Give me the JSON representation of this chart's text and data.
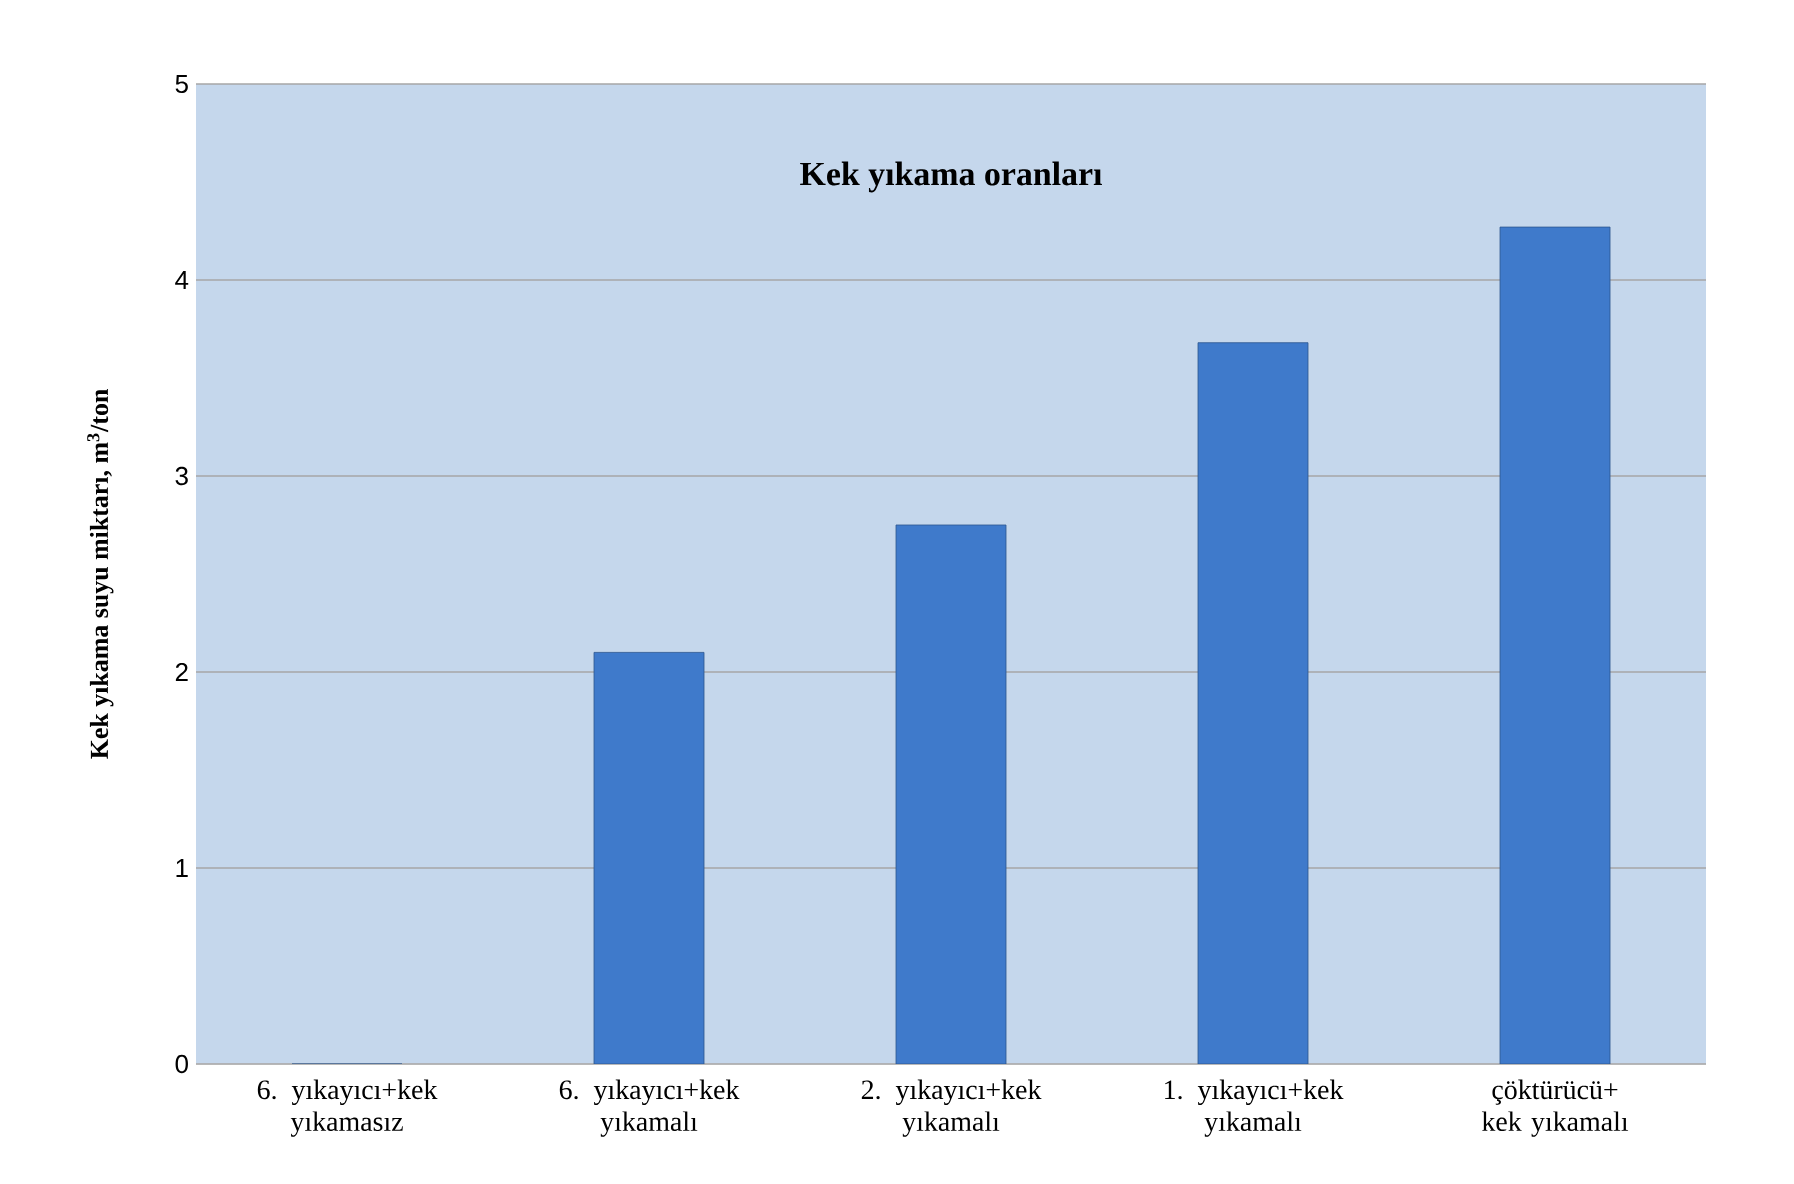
{
  "chart_data": {
    "type": "bar",
    "title": "Kek yıkama oranları",
    "ylabel": "Kek yıkama  suyu miktarı, m$^{3}$/ton",
    "categories": [
      "6. yıkayıcı+kek yıkamasız",
      "6. yıkayıcı+kek yıkamalı",
      "2. yıkayıcı+kek yıkamalı",
      "1. yıkayıcı+kek yıkamalı",
      "çöktürücü+ kek yıkamalı"
    ],
    "values": [
      0,
      2.1,
      2.75,
      3.68,
      4.27
    ],
    "color": "#3f7acb",
    "ylim": [
      0,
      5
    ],
    "yticks": [
      0,
      1,
      2,
      3,
      4,
      5
    ],
    "grid": "y"
  }
}
